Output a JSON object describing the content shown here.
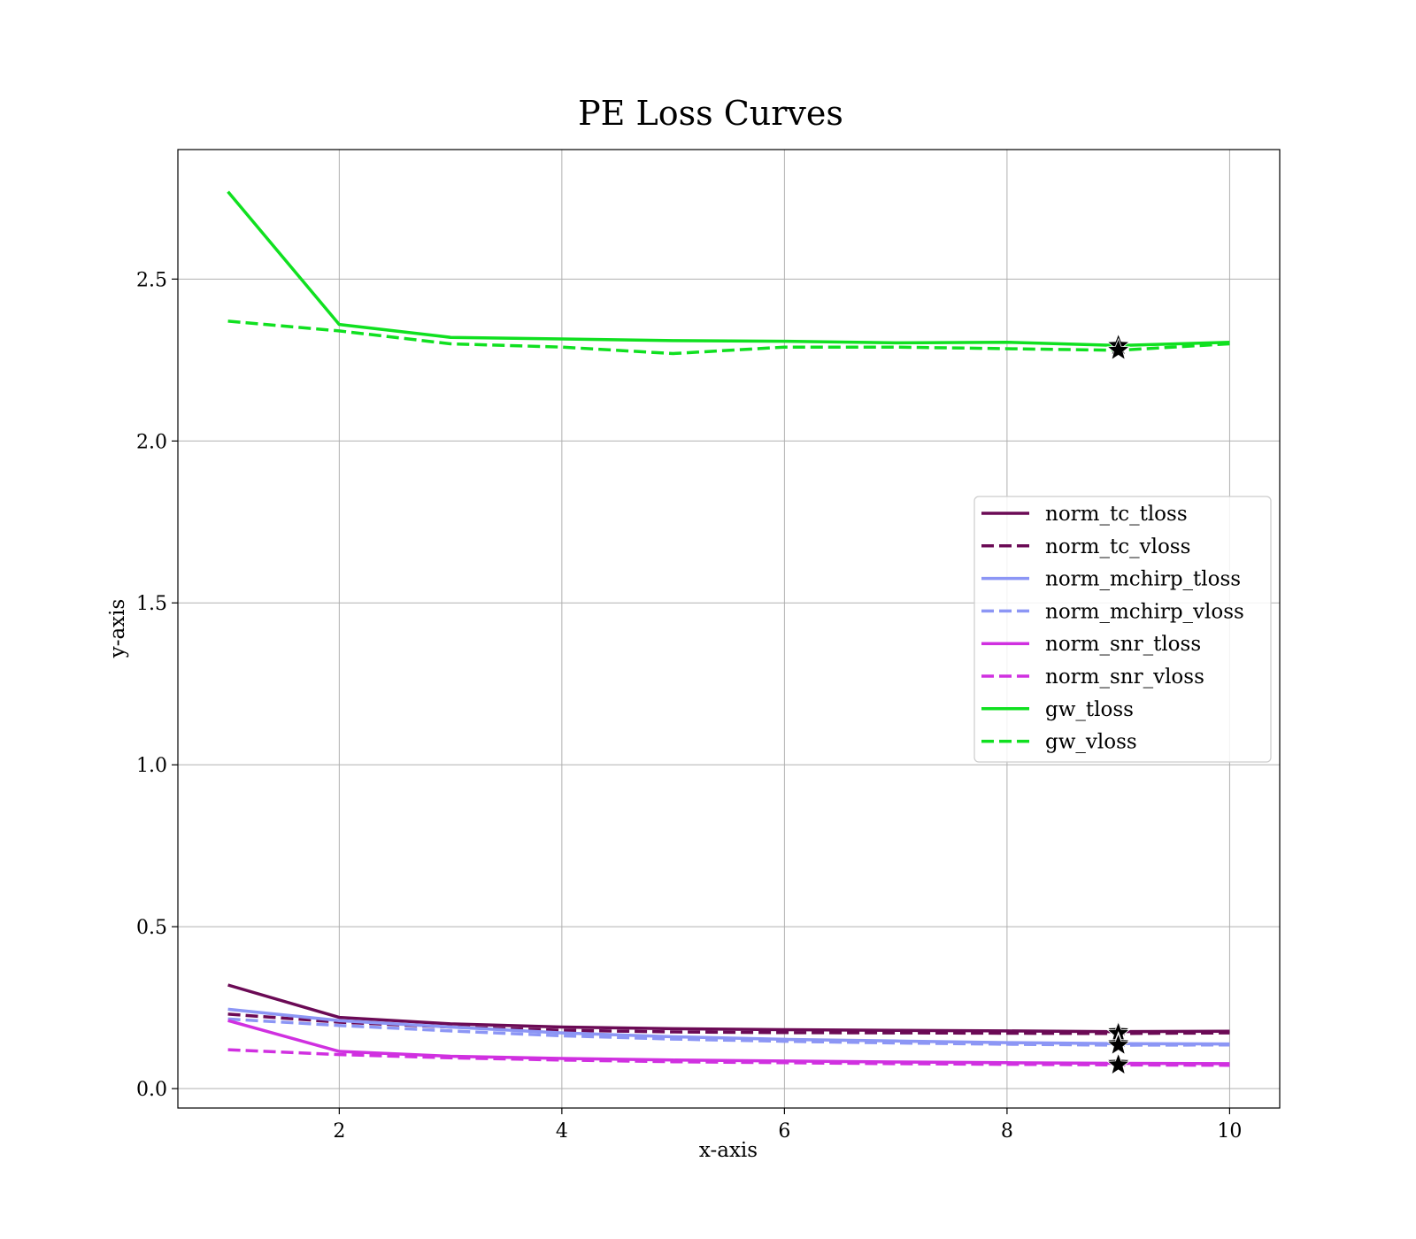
{
  "chart_data": {
    "type": "line",
    "title": "PE Loss Curves",
    "xlabel": "x-axis",
    "ylabel": "y-axis",
    "xlim": [
      0.55,
      10.45
    ],
    "ylim": [
      -0.06,
      2.9
    ],
    "xticks": [
      2,
      4,
      6,
      8,
      10
    ],
    "yticks": [
      0.0,
      0.5,
      1.0,
      1.5,
      2.0,
      2.5
    ],
    "xtick_labels": [
      "2",
      "4",
      "6",
      "8",
      "10"
    ],
    "ytick_labels": [
      "0.0",
      "0.5",
      "1.0",
      "1.5",
      "2.0",
      "2.5"
    ],
    "grid": true,
    "legend_position": "center-right",
    "x": [
      1,
      2,
      3,
      4,
      5,
      6,
      7,
      8,
      9,
      10
    ],
    "series": [
      {
        "name": "norm_tc_tloss",
        "color": "#6b0a55",
        "dash": "solid",
        "values": [
          0.32,
          0.22,
          0.2,
          0.19,
          0.185,
          0.182,
          0.18,
          0.178,
          0.176,
          0.177
        ]
      },
      {
        "name": "norm_tc_vloss",
        "color": "#6b0a55",
        "dash": "dashed",
        "values": [
          0.23,
          0.205,
          0.19,
          0.18,
          0.175,
          0.173,
          0.172,
          0.171,
          0.17,
          0.172
        ]
      },
      {
        "name": "norm_mchirp_tloss",
        "color": "#8c96f5",
        "dash": "solid",
        "values": [
          0.245,
          0.21,
          0.19,
          0.172,
          0.16,
          0.152,
          0.147,
          0.142,
          0.139,
          0.138
        ]
      },
      {
        "name": "norm_mchirp_vloss",
        "color": "#8c96f5",
        "dash": "dashed",
        "values": [
          0.215,
          0.195,
          0.178,
          0.163,
          0.153,
          0.146,
          0.141,
          0.137,
          0.134,
          0.135
        ]
      },
      {
        "name": "norm_snr_tloss",
        "color": "#d030e0",
        "dash": "solid",
        "values": [
          0.21,
          0.115,
          0.1,
          0.093,
          0.088,
          0.085,
          0.082,
          0.08,
          0.078,
          0.077
        ]
      },
      {
        "name": "norm_snr_vloss",
        "color": "#d030e0",
        "dash": "dashed",
        "values": [
          0.12,
          0.105,
          0.095,
          0.088,
          0.083,
          0.08,
          0.077,
          0.075,
          0.073,
          0.072
        ]
      },
      {
        "name": "gw_tloss",
        "color": "#10e020",
        "dash": "solid",
        "values": [
          2.77,
          2.36,
          2.32,
          2.315,
          2.31,
          2.308,
          2.303,
          2.305,
          2.295,
          2.305
        ]
      },
      {
        "name": "gw_vloss",
        "color": "#10e020",
        "dash": "dashed",
        "values": [
          2.37,
          2.34,
          2.3,
          2.29,
          2.27,
          2.29,
          2.29,
          2.285,
          2.28,
          2.3
        ]
      }
    ],
    "markers": {
      "shape": "star",
      "color": "#000000",
      "points": [
        {
          "x": 9,
          "y": 2.295
        },
        {
          "x": 9,
          "y": 2.28
        },
        {
          "x": 9,
          "y": 0.176
        },
        {
          "x": 9,
          "y": 0.17
        },
        {
          "x": 9,
          "y": 0.139
        },
        {
          "x": 9,
          "y": 0.134
        },
        {
          "x": 9,
          "y": 0.078
        },
        {
          "x": 9,
          "y": 0.073
        }
      ]
    }
  }
}
